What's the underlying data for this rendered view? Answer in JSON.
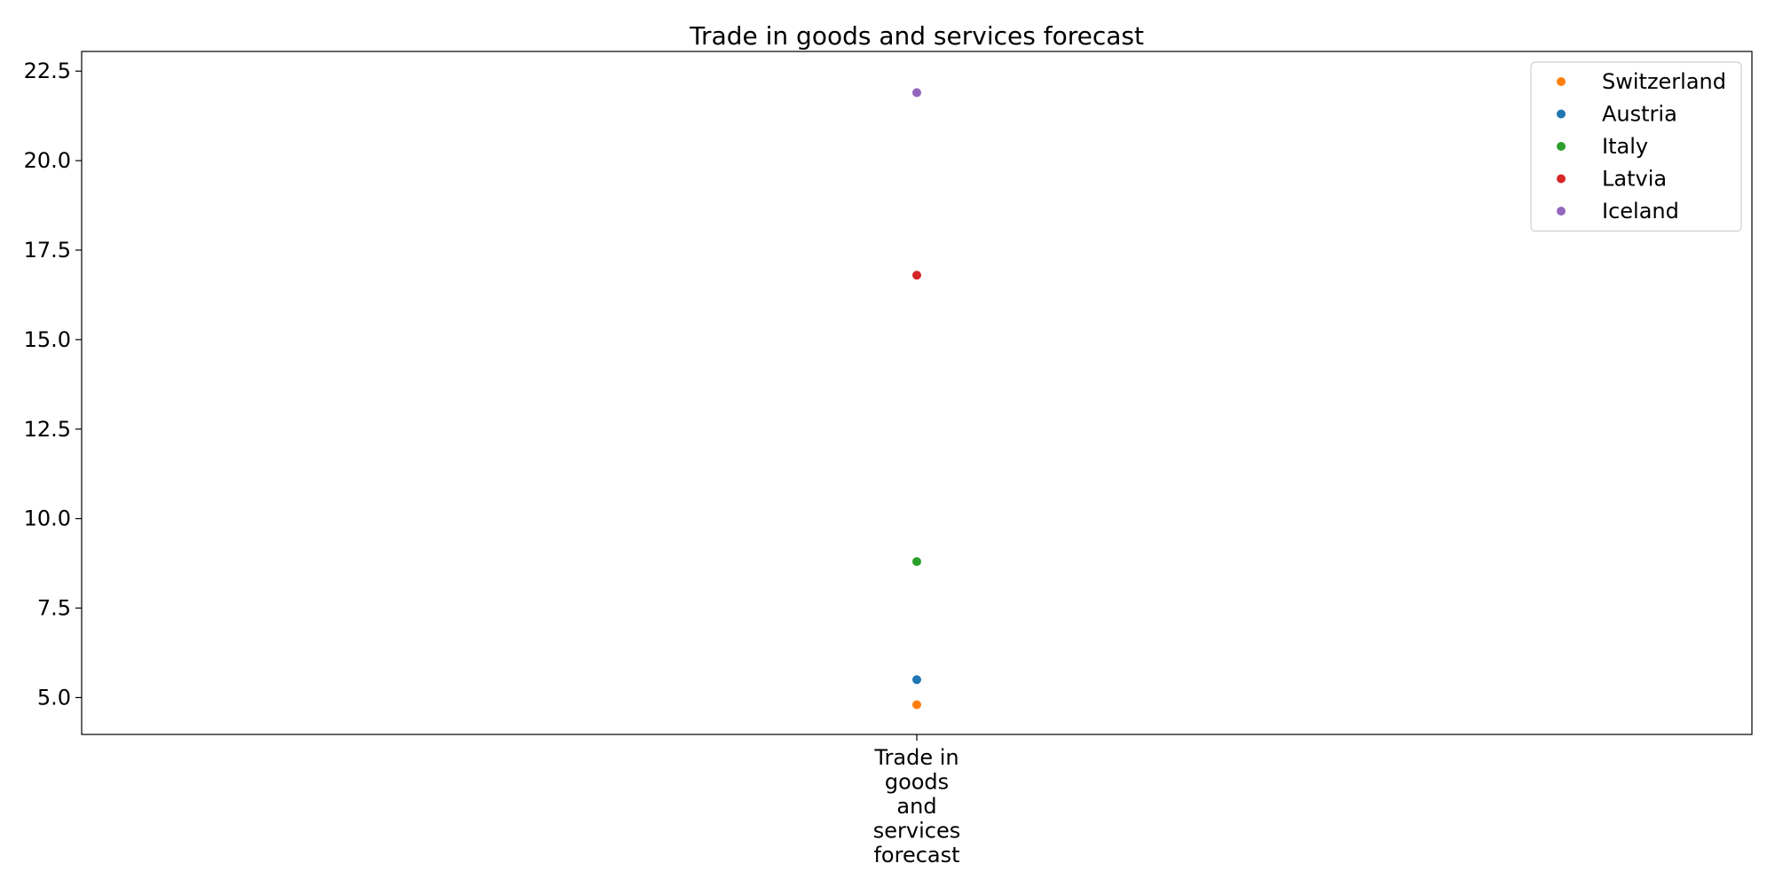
{
  "chart_data": {
    "type": "scatter",
    "title": "Trade in goods and services forecast",
    "xlabel": "",
    "ylabel": "",
    "categories": [
      "Trade in\ngoods\nand\nservices\nforecast"
    ],
    "ylim": [
      3.97,
      23.05
    ],
    "yticks": [
      "5.0",
      "7.5",
      "10.0",
      "12.5",
      "15.0",
      "17.5",
      "20.0",
      "22.5"
    ],
    "grid": false,
    "legend_position": "top-right",
    "series": [
      {
        "name": "Switzerland",
        "color": "#ff7f0e",
        "values": [
          4.8
        ]
      },
      {
        "name": "Austria",
        "color": "#1f77b4",
        "values": [
          5.5
        ]
      },
      {
        "name": "Italy",
        "color": "#2ca02c",
        "values": [
          8.8
        ]
      },
      {
        "name": "Latvia",
        "color": "#d62728",
        "values": [
          16.8
        ]
      },
      {
        "name": "Iceland",
        "color": "#9467bd",
        "values": [
          21.9
        ]
      }
    ]
  }
}
